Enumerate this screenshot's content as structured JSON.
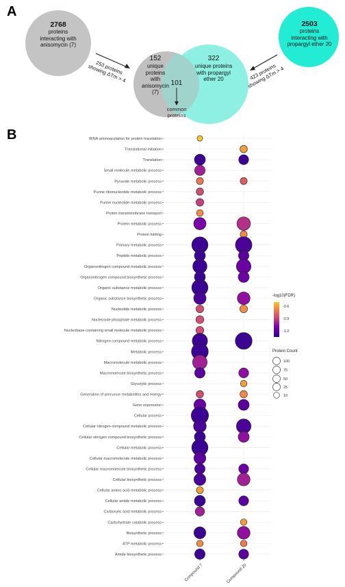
{
  "panels": {
    "a": "A",
    "b": "B"
  },
  "venn": {
    "left_circle": {
      "count": "2768",
      "lines": [
        "proteins",
        "interacting with",
        "anisomycin (7)"
      ],
      "color": "#c4c4c4"
    },
    "right_circle": {
      "count": "2503",
      "lines": [
        "proteins",
        "interacting with",
        "propargyl ether 20"
      ],
      "color": "#22ecd4"
    },
    "middle_left": {
      "count": "152",
      "lines": [
        "unique",
        "proteins",
        "with",
        "anisomycin",
        "(7)"
      ],
      "color": "#bdbdbd"
    },
    "middle_right": {
      "count": "322",
      "lines": [
        "unique proteins",
        "with propargyl",
        "ether 20"
      ],
      "color": "#8ef0e2"
    },
    "overlap_count": "101",
    "common_label": [
      "common",
      "proteins"
    ],
    "left_arrow_note": [
      "253 proteins",
      "showing ΔTm > 4"
    ],
    "right_arrow_note": [
      "423 proteins",
      "showing ΔTm > 4"
    ]
  },
  "chart_data": {
    "type": "bubble",
    "x_categories": [
      "Compound 7",
      "Compound 20"
    ],
    "legend_color_title": "-log10(FDR)",
    "legend_color_ticks": [
      "-0.6",
      "-0.9",
      "-1.2"
    ],
    "legend_color_range": [
      -1.35,
      -0.5
    ],
    "legend_size_title": "Protein Count",
    "legend_size_ticks": [
      100,
      75,
      50,
      25,
      10
    ],
    "rows": [
      {
        "label": "tRNA aminoacylation for protein translation",
        "c7": {
          "count": 4,
          "val": -0.5
        },
        "c20": null
      },
      {
        "label": "Translational initiation",
        "c7": null,
        "c20": {
          "count": 12,
          "val": -0.6
        }
      },
      {
        "label": "Translation",
        "c7": {
          "count": 40,
          "val": -1.3
        },
        "c20": {
          "count": 30,
          "val": -1.3
        }
      },
      {
        "label": "Small molecule metabolic process",
        "c7": {
          "count": 35,
          "val": -1.0
        },
        "c20": null
      },
      {
        "label": "Pyruvate metabolic process",
        "c7": {
          "count": 10,
          "val": -0.7
        },
        "c20": {
          "count": 10,
          "val": -0.8
        }
      },
      {
        "label": "Purine ribonucleotide metabolic process",
        "c7": {
          "count": 12,
          "val": -0.85
        },
        "c20": null
      },
      {
        "label": "Purine nucleotide metabolic process",
        "c7": {
          "count": 14,
          "val": -0.9
        },
        "c20": null
      },
      {
        "label": "Proton transmembrane transport",
        "c7": {
          "count": 9,
          "val": -0.65
        },
        "c20": null
      },
      {
        "label": "Protein metabolic process",
        "c7": {
          "count": 55,
          "val": -1.1
        },
        "c20": {
          "count": 70,
          "val": -0.95
        }
      },
      {
        "label": "Protein folding",
        "c7": null,
        "c20": {
          "count": 10,
          "val": -0.65
        }
      },
      {
        "label": "Primary metabolic process",
        "c7": {
          "count": 110,
          "val": -1.3
        },
        "c20": {
          "count": 115,
          "val": -1.25
        }
      },
      {
        "label": "Peptide metabolic process",
        "c7": {
          "count": 40,
          "val": -1.3
        },
        "c20": {
          "count": 35,
          "val": -1.2
        }
      },
      {
        "label": "Organonitrogen compound metabolic process",
        "c7": {
          "count": 80,
          "val": -1.3
        },
        "c20": {
          "count": 85,
          "val": -1.15
        }
      },
      {
        "label": "Organonitrogen compound biosynthetic process",
        "c7": {
          "count": 40,
          "val": -1.3
        },
        "c20": {
          "count": 40,
          "val": -1.15
        }
      },
      {
        "label": "Organic substance metabolic process",
        "c7": {
          "count": 110,
          "val": -1.3
        },
        "c20": null
      },
      {
        "label": "Organic substance biosynthetic process",
        "c7": {
          "count": 55,
          "val": -1.25
        },
        "c20": {
          "count": 60,
          "val": -1.05
        }
      },
      {
        "label": "Nucleotide metabolic process",
        "c7": {
          "count": 14,
          "val": -0.85
        },
        "c20": {
          "count": 14,
          "val": -0.65
        }
      },
      {
        "label": "Nucleoside phosphate metabolic process",
        "c7": {
          "count": 15,
          "val": -0.85
        },
        "c20": null
      },
      {
        "label": "Nucleobase-containing small molecule metabolic process",
        "c7": {
          "count": 15,
          "val": -0.85
        },
        "c20": null
      },
      {
        "label": "Nitrogen compound metabolic process",
        "c7": {
          "count": 95,
          "val": -1.3
        },
        "c20": {
          "count": 120,
          "val": -1.3
        }
      },
      {
        "label": "Metabolic process",
        "c7": {
          "count": 120,
          "val": -1.3
        },
        "c20": null
      },
      {
        "label": "Macromolecule metabolic process",
        "c7": {
          "count": 85,
          "val": -1.0
        },
        "c20": null
      },
      {
        "label": "Macromolecule biosynthetic process",
        "c7": {
          "count": 35,
          "val": -1.2
        },
        "c20": {
          "count": 30,
          "val": -1.05
        }
      },
      {
        "label": "Glycolytic process",
        "c7": null,
        "c20": {
          "count": 8,
          "val": -0.6
        }
      },
      {
        "label": "Generation of precursor metabolites and energy",
        "c7": {
          "count": 12,
          "val": -0.85
        },
        "c20": {
          "count": 12,
          "val": -0.65
        }
      },
      {
        "label": "Gene expression",
        "c7": {
          "count": 50,
          "val": -1.15
        },
        "c20": {
          "count": 40,
          "val": -1.2
        }
      },
      {
        "label": "Cellular process",
        "c7": {
          "count": 130,
          "val": -1.3
        },
        "c20": null
      },
      {
        "label": "Cellular nitrogen compound metabolic process",
        "c7": {
          "count": 60,
          "val": -1.25
        },
        "c20": {
          "count": 85,
          "val": -1.25
        }
      },
      {
        "label": "Cellular nitrogen compound biosynthetic process",
        "c7": {
          "count": 40,
          "val": -1.3
        },
        "c20": {
          "count": 40,
          "val": -1.05
        }
      },
      {
        "label": "Cellular metabolic process",
        "c7": {
          "count": 110,
          "val": -1.3
        },
        "c20": null
      },
      {
        "label": "Cellular macromolecule metabolic process",
        "c7": {
          "count": 50,
          "val": -1.2
        },
        "c20": null
      },
      {
        "label": "Cellular macromolecule biosynthetic process",
        "c7": {
          "count": 35,
          "val": -1.25
        },
        "c20": {
          "count": 30,
          "val": -1.15
        }
      },
      {
        "label": "Cellular biosynthetic process",
        "c7": {
          "count": 50,
          "val": -1.25
        },
        "c20": {
          "count": 60,
          "val": -1.0
        }
      },
      {
        "label": "Cellular amino acid metabolic process",
        "c7": {
          "count": 10,
          "val": -0.6
        },
        "c20": null
      },
      {
        "label": "Cellular amide metabolic process",
        "c7": {
          "count": 40,
          "val": -1.3
        },
        "c20": {
          "count": 30,
          "val": -1.2
        }
      },
      {
        "label": "Carboxylic acid metabolic process",
        "c7": {
          "count": 25,
          "val": -1.0
        },
        "c20": null
      },
      {
        "label": "Carbohydrate catabolic process",
        "c7": null,
        "c20": {
          "count": 8,
          "val": -0.6
        }
      },
      {
        "label": "Biosynthetic process",
        "c7": {
          "count": 50,
          "val": -1.3
        },
        "c20": {
          "count": 60,
          "val": -1.05
        }
      },
      {
        "label": "ATP metabolic process",
        "c7": {
          "count": 8,
          "val": -0.65
        },
        "c20": {
          "count": 8,
          "val": -0.7
        }
      },
      {
        "label": "Amide biosynthetic process",
        "c7": {
          "count": 35,
          "val": -1.3
        },
        "c20": {
          "count": 30,
          "val": -1.2
        }
      }
    ]
  }
}
